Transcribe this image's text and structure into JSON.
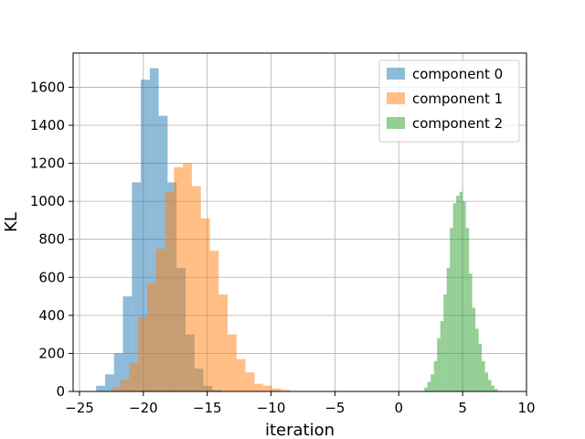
{
  "chart_data": {
    "type": "histogram",
    "title": "",
    "xlabel": "iteration",
    "ylabel": "KL",
    "xlim": [
      -25.5,
      10
    ],
    "ylim": [
      0,
      1780
    ],
    "xticks": [
      -25,
      -20,
      -15,
      -10,
      -5,
      0,
      5,
      10
    ],
    "yticks": [
      0,
      200,
      400,
      600,
      800,
      1000,
      1200,
      1400,
      1600
    ],
    "grid": true,
    "legend_position": "top-right",
    "series": [
      {
        "name": "component 0",
        "color": "#1f77b4",
        "alpha": 0.5,
        "bins": [
          [
            -23.7,
            -23.0,
            30
          ],
          [
            -23.0,
            -22.3,
            90
          ],
          [
            -22.3,
            -21.6,
            200
          ],
          [
            -21.6,
            -20.9,
            500
          ],
          [
            -20.9,
            -20.2,
            1100
          ],
          [
            -20.2,
            -19.5,
            1640
          ],
          [
            -19.5,
            -18.8,
            1700
          ],
          [
            -18.8,
            -18.1,
            1450
          ],
          [
            -18.1,
            -17.4,
            1100
          ],
          [
            -17.4,
            -16.7,
            650
          ],
          [
            -16.7,
            -16.0,
            300
          ],
          [
            -16.0,
            -15.3,
            120
          ],
          [
            -15.3,
            -14.6,
            30
          ],
          [
            -14.6,
            -13.9,
            8
          ]
        ]
      },
      {
        "name": "component 1",
        "color": "#ff7f0e",
        "alpha": 0.5,
        "bins": [
          [
            -22.5,
            -21.8,
            20
          ],
          [
            -21.8,
            -21.1,
            60
          ],
          [
            -21.1,
            -20.4,
            150
          ],
          [
            -20.4,
            -19.7,
            390
          ],
          [
            -19.7,
            -19.0,
            570
          ],
          [
            -19.0,
            -18.3,
            750
          ],
          [
            -18.3,
            -17.6,
            1050
          ],
          [
            -17.6,
            -16.9,
            1180
          ],
          [
            -16.9,
            -16.2,
            1200
          ],
          [
            -16.2,
            -15.5,
            1080
          ],
          [
            -15.5,
            -14.8,
            910
          ],
          [
            -14.8,
            -14.1,
            740
          ],
          [
            -14.1,
            -13.4,
            510
          ],
          [
            -13.4,
            -12.7,
            300
          ],
          [
            -12.7,
            -12.0,
            170
          ],
          [
            -12.0,
            -11.3,
            100
          ],
          [
            -11.3,
            -10.6,
            40
          ],
          [
            -10.6,
            -9.9,
            30
          ],
          [
            -9.9,
            -9.2,
            15
          ],
          [
            -9.2,
            -8.5,
            8
          ]
        ]
      },
      {
        "name": "component 2",
        "color": "#2ca02c",
        "alpha": 0.5,
        "bins": [
          [
            2.0,
            2.25,
            20
          ],
          [
            2.25,
            2.5,
            50
          ],
          [
            2.5,
            2.75,
            90
          ],
          [
            2.75,
            3.0,
            160
          ],
          [
            3.0,
            3.25,
            280
          ],
          [
            3.25,
            3.5,
            370
          ],
          [
            3.5,
            3.75,
            510
          ],
          [
            3.75,
            4.0,
            650
          ],
          [
            4.0,
            4.25,
            860
          ],
          [
            4.25,
            4.5,
            990
          ],
          [
            4.5,
            4.75,
            1030
          ],
          [
            4.75,
            5.0,
            1050
          ],
          [
            5.0,
            5.25,
            1000
          ],
          [
            5.25,
            5.5,
            860
          ],
          [
            5.5,
            5.75,
            620
          ],
          [
            5.75,
            6.0,
            440
          ],
          [
            6.0,
            6.25,
            330
          ],
          [
            6.25,
            6.5,
            250
          ],
          [
            6.5,
            6.75,
            160
          ],
          [
            6.75,
            7.0,
            100
          ],
          [
            7.0,
            7.25,
            60
          ],
          [
            7.25,
            7.5,
            30
          ],
          [
            7.5,
            7.75,
            12
          ]
        ]
      }
    ]
  }
}
